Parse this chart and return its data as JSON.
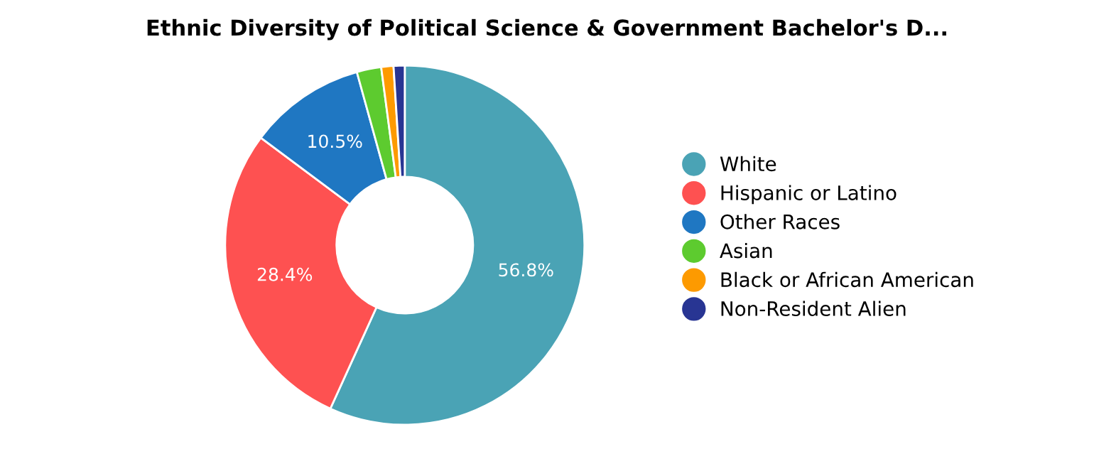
{
  "chart_data": {
    "type": "donut",
    "title": "Ethnic Diversity of Political Science & Government Bachelor's D...",
    "categories": [
      "White",
      "Hispanic or Latino",
      "Other Races",
      "Asian",
      "Black or African American",
      "Non-Resident Alien"
    ],
    "values": [
      56.8,
      28.4,
      10.5,
      2.2,
      1.1,
      1.0
    ],
    "colors": [
      "#4aa3b5",
      "#fe5151",
      "#1f77c2",
      "#5dcb2f",
      "#fd9a00",
      "#283593"
    ],
    "value_labels": [
      "56.8%",
      "28.4%",
      "10.5%",
      null,
      null,
      null
    ],
    "legend": "right"
  }
}
